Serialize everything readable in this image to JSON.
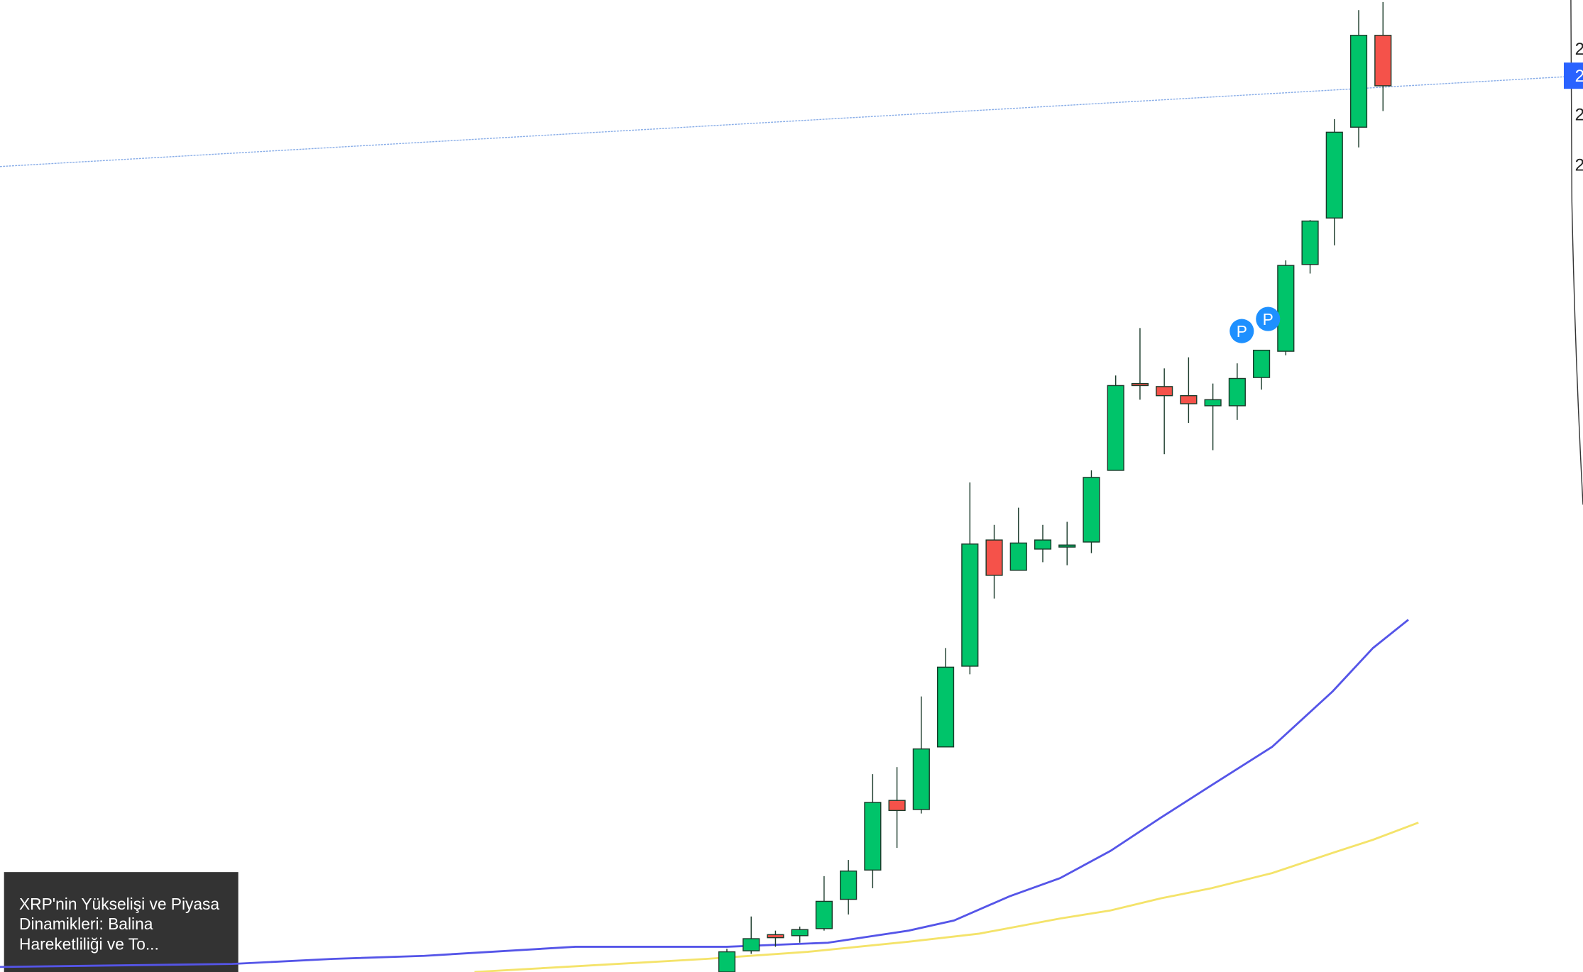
{
  "chart_data": {
    "type": "candlestick",
    "ylim": [
      0,
      963
    ],
    "open": [
      0,
      21,
      37,
      36,
      43,
      72,
      101,
      170,
      161,
      223,
      303,
      428,
      398,
      419,
      423,
      426,
      497,
      583,
      580,
      571,
      561,
      561,
      589,
      615,
      701,
      747,
      837,
      928
    ],
    "high": [
      23,
      55,
      41,
      45,
      95,
      111,
      196,
      203,
      273,
      321,
      485,
      443,
      460,
      443,
      446,
      497,
      591,
      638,
      598,
      609,
      583,
      603,
      616,
      705,
      745,
      845,
      953,
      961
    ],
    "low": [
      0,
      18,
      25,
      29,
      41,
      57,
      83,
      123,
      157,
      223,
      295,
      370,
      398,
      406,
      403,
      415,
      497,
      567,
      513,
      544,
      517,
      547,
      577,
      611,
      692,
      720,
      817,
      853
    ],
    "close": [
      20,
      33,
      34,
      42,
      70,
      100,
      168,
      160,
      221,
      302,
      424,
      393,
      425,
      428,
      423,
      490,
      581,
      581,
      571,
      563,
      567,
      588,
      616,
      700,
      744,
      832,
      928,
      878
    ],
    "up_color": "#00c46a",
    "down_color": "#f5524a",
    "series": [
      {
        "name": null,
        "color": "#5555e8",
        "x": [
          0,
          230,
          330,
          420,
          570,
          720,
          820,
          900,
          945,
          1000,
          1050,
          1100,
          1150,
          1200,
          1260,
          1320,
          1360,
          1395
        ],
        "values": [
          5,
          8,
          13,
          16,
          25,
          25,
          29,
          41,
          51,
          75,
          93,
          120,
          153,
          185,
          223,
          278,
          321,
          349
        ]
      },
      {
        "name": null,
        "color": "#f4e36a",
        "x": [
          470,
          700,
          800,
          900,
          970,
          1050,
          1100,
          1150,
          1200,
          1260,
          1320,
          1360,
          1405
        ],
        "values": [
          0,
          13,
          20,
          30,
          38,
          53,
          61,
          73,
          83,
          98,
          118,
          131,
          148
        ]
      }
    ],
    "axis_labels": [
      "2",
      "2",
      "2",
      "2"
    ],
    "markers": [
      "P",
      "P"
    ],
    "caption": [
      "XRP'nin Yükselişi ve Piyasa",
      "Dinamikleri: Balina",
      "Hareketliliği ve To..."
    ]
  }
}
